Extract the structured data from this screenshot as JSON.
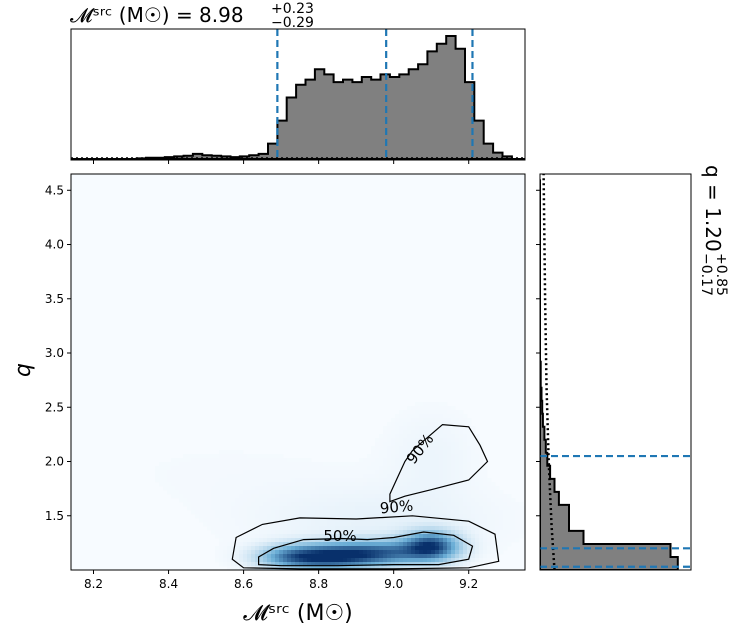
{
  "colors": {
    "hist_fill": "#808080",
    "hist_edge": "#000000",
    "quantile_line": "#1f77b4",
    "density_low": "#f7fbff",
    "density_mid": "#6baed6",
    "density_high": "#08306b",
    "contour": "#000000",
    "prior_line": "#000000"
  },
  "chart_data": {
    "type": "corner",
    "top_title": {
      "text": "𝓜ˢʳᶜ (M☉) = 8.98",
      "superscript": "+0.23",
      "subscript": "−0.29"
    },
    "right_title": {
      "text": "q = 1.20",
      "superscript": "+0.85",
      "subscript": "−0.17"
    },
    "xlabel": "𝓜ˢʳᶜ (M☉)",
    "ylabel": "q",
    "xlim": [
      8.14,
      9.35
    ],
    "ylim": [
      1.0,
      4.65
    ],
    "xticks": [
      "8.2",
      "8.4",
      "8.6",
      "8.8",
      "9.0",
      "9.2"
    ],
    "yticks": [
      "1.5",
      "2.0",
      "2.5",
      "3.0",
      "3.5",
      "4.0",
      "4.5"
    ],
    "mchirp_quantiles": [
      8.69,
      8.98,
      9.21
    ],
    "q_quantiles": [
      1.03,
      1.2,
      2.05
    ],
    "mchirp_hist": {
      "bin_start": 8.14,
      "bin_width": 0.025,
      "heights": [
        0,
        0,
        0,
        0,
        0,
        0,
        0,
        0.005,
        0.01,
        0.01,
        0.015,
        0.02,
        0.025,
        0.04,
        0.03,
        0.025,
        0.02,
        0.015,
        0.02,
        0.03,
        0.04,
        0.12,
        0.3,
        0.48,
        0.58,
        0.62,
        0.7,
        0.66,
        0.6,
        0.62,
        0.6,
        0.64,
        0.62,
        0.66,
        0.64,
        0.66,
        0.7,
        0.74,
        0.84,
        0.9,
        0.96,
        0.86,
        0.6,
        0.3,
        0.12,
        0.05,
        0.02,
        0,
        0,
        0
      ]
    },
    "q_hist": {
      "bin_start": 1.0,
      "bin_width": 0.12,
      "lengths": [
        0.95,
        0.9,
        0.3,
        0.2,
        0.2,
        0.13,
        0.1,
        0.07,
        0.05,
        0.04,
        0.03,
        0.02,
        0.015,
        0.01,
        0.005,
        0.005,
        0,
        0,
        0,
        0,
        0,
        0,
        0,
        0,
        0,
        0,
        0,
        0,
        0,
        0
      ]
    },
    "q_prior_dotted": {
      "q": [
        1.0,
        1.4,
        2.0,
        2.7,
        3.5,
        4.65
      ],
      "relative": [
        0.1,
        0.08,
        0.06,
        0.045,
        0.035,
        0.025
      ]
    },
    "density_blobs": [
      {
        "x": 8.82,
        "y": 1.12,
        "sx": 0.09,
        "sy": 0.08,
        "w": 1.0
      },
      {
        "x": 9.1,
        "y": 1.22,
        "sx": 0.05,
        "sy": 0.09,
        "w": 0.95
      },
      {
        "x": 8.97,
        "y": 1.16,
        "sx": 0.09,
        "sy": 0.08,
        "w": 0.7
      },
      {
        "x": 8.72,
        "y": 1.12,
        "sx": 0.06,
        "sy": 0.07,
        "w": 0.35
      },
      {
        "x": 8.95,
        "y": 1.45,
        "sx": 0.22,
        "sy": 0.22,
        "w": 0.06
      },
      {
        "x": 9.1,
        "y": 2.05,
        "sx": 0.08,
        "sy": 0.3,
        "w": 0.04
      },
      {
        "x": 8.55,
        "y": 1.9,
        "sx": 0.3,
        "sy": 0.3,
        "w": 0.012
      }
    ],
    "contours": [
      {
        "label": "50%",
        "points": [
          [
            8.64,
            1.05
          ],
          [
            8.7,
            1.04
          ],
          [
            8.85,
            1.04
          ],
          [
            9.0,
            1.05
          ],
          [
            9.12,
            1.05
          ],
          [
            9.2,
            1.1
          ],
          [
            9.21,
            1.22
          ],
          [
            9.16,
            1.32
          ],
          [
            9.08,
            1.35
          ],
          [
            9.0,
            1.3
          ],
          [
            8.93,
            1.28
          ],
          [
            8.86,
            1.29
          ],
          [
            8.76,
            1.28
          ],
          [
            8.68,
            1.2
          ],
          [
            8.64,
            1.12
          ]
        ]
      },
      {
        "label": "90%",
        "points": [
          [
            8.6,
            1.02
          ],
          [
            8.75,
            1.01
          ],
          [
            9.0,
            1.01
          ],
          [
            9.2,
            1.02
          ],
          [
            9.28,
            1.08
          ],
          [
            9.27,
            1.33
          ],
          [
            9.2,
            1.45
          ],
          [
            9.05,
            1.5
          ],
          [
            8.9,
            1.47
          ],
          [
            8.75,
            1.48
          ],
          [
            8.65,
            1.42
          ],
          [
            8.58,
            1.3
          ],
          [
            8.57,
            1.1
          ]
        ]
      },
      {
        "label": "90%",
        "points": [
          [
            8.99,
            1.63
          ],
          [
            9.03,
            1.68
          ],
          [
            9.1,
            1.74
          ],
          [
            9.2,
            1.83
          ],
          [
            9.25,
            2.0
          ],
          [
            9.23,
            2.15
          ],
          [
            9.2,
            2.32
          ],
          [
            9.13,
            2.34
          ],
          [
            9.09,
            2.22
          ],
          [
            9.05,
            2.1
          ],
          [
            9.03,
            2.0
          ],
          [
            9.01,
            1.85
          ],
          [
            8.99,
            1.7
          ]
        ]
      }
    ]
  }
}
